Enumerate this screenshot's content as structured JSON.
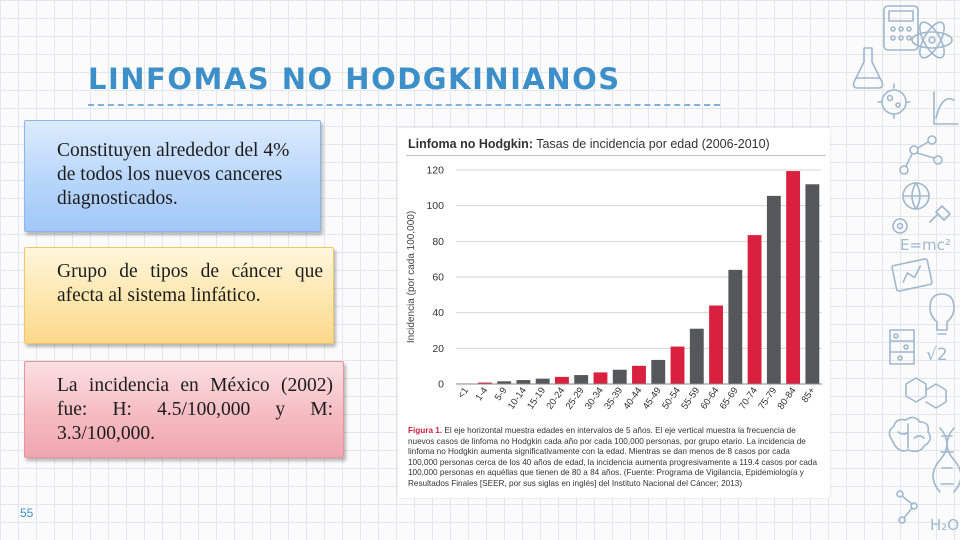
{
  "slide": {
    "title": "LINFOMAS NO  HODGKINIANOS",
    "number": "55"
  },
  "cards": {
    "card1": "Constituyen alrededor del 4% de  todos los nuevos canceres  diagnosticados.",
    "card2": "Grupo de tipos de cáncer que afecta al sistema linfático.",
    "card3": "La incidencia en  México (2002) fue: H: 4.5/100,000 y M: 3.3/100,000."
  },
  "figure": {
    "title_bold": "Linfoma no Hodgkin:",
    "title_rest": " Tasas de incidencia por edad (2006-2010)",
    "caption_label": "Figura 1.",
    "caption_text": "El eje horizontal muestra edades en intervalos de 5 años. El eje vertical muestra la frecuencia de nuevos casos de linfoma no Hodgkin cada año por cada 100,000 personas, por grupo etario. La incidencia de linfoma no Hodgkin aumenta significativamente con la edad. Mientras se dan menos de 8 casos por cada 100,000 personas cerca de los 40 años de edad, la incidencia aumenta progresivamente a 119.4 casos por cada 100,000 personas en aquéllas que tienen de 80 a 84 años. (Fuente: Programa de Vigilancia, Epidemiología y Resultados Finales [SEER, por sus siglas en inglés] del Instituto Nacional del Cáncer; 2013)"
  },
  "chart_data": {
    "type": "bar",
    "title": "Linfoma no Hodgkin: Tasas de incidencia por edad (2006-2010)",
    "ylabel": "Incidencia (por cada 100,000)",
    "xlabel": "",
    "ylim": [
      0,
      120
    ],
    "yticks": [
      0,
      20,
      40,
      60,
      80,
      100,
      120
    ],
    "grid": "horizontal",
    "categories": [
      "<1",
      "1-4",
      "5-9",
      "10-14",
      "15-19",
      "20-24",
      "25-29",
      "30-34",
      "35-39",
      "40-44",
      "45-49",
      "50-54",
      "55-59",
      "60-64",
      "65-69",
      "70-74",
      "75-79",
      "80-84",
      "85+"
    ],
    "values": [
      0.3,
      0.8,
      1.5,
      2.2,
      3.0,
      4.0,
      5.0,
      6.5,
      8.0,
      10.2,
      13.5,
      21.0,
      31.0,
      44.0,
      64.0,
      83.5,
      105.5,
      119.4,
      112.0
    ],
    "colors": [
      "#d9203f",
      "#d9203f",
      "#55575b",
      "#55575b",
      "#55575b",
      "#d9203f",
      "#55575b",
      "#d9203f",
      "#55575b",
      "#d9203f",
      "#55575b",
      "#d9203f",
      "#55575b",
      "#d9203f",
      "#55575b",
      "#d9203f",
      "#55575b",
      "#d9203f",
      "#55575b"
    ]
  },
  "decorations": {
    "formula_1": "E=mc²",
    "formula_2": "√2",
    "formula_3": "H₂O"
  }
}
